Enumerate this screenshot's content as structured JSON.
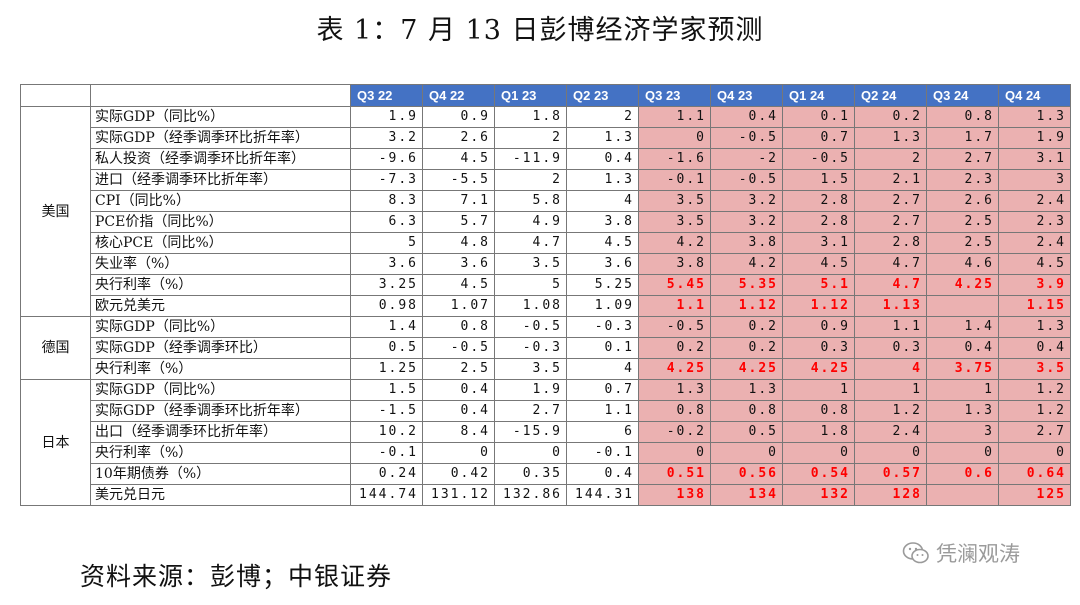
{
  "title": "表 1：7 月 13 日彭博经济学家预测",
  "table": {
    "quarters": [
      "Q3 22",
      "Q4 22",
      "Q1 23",
      "Q2 23",
      "Q3 23",
      "Q4 23",
      "Q1 24",
      "Q2 24",
      "Q3 24",
      "Q4 24"
    ],
    "groups": [
      {
        "country": "美国",
        "rows": [
          {
            "label": "实际GDP（同比%）",
            "values": [
              "1.9",
              "0.9",
              "1.8",
              "2",
              "1.1",
              "0.4",
              "0.1",
              "0.2",
              "0.8",
              "1.3"
            ]
          },
          {
            "label": "实际GDP（经季调季环比折年率）",
            "values": [
              "3.2",
              "2.6",
              "2",
              "1.3",
              "0",
              "-0.5",
              "0.7",
              "1.3",
              "1.7",
              "1.9"
            ]
          },
          {
            "label": "私人投资（经季调季环比折年率）",
            "values": [
              "-9.6",
              "4.5",
              "-11.9",
              "0.4",
              "-1.6",
              "-2",
              "-0.5",
              "2",
              "2.7",
              "3.1"
            ]
          },
          {
            "label": "进口（经季调季环比折年率）",
            "values": [
              "-7.3",
              "-5.5",
              "2",
              "1.3",
              "-0.1",
              "-0.5",
              "1.5",
              "2.1",
              "2.3",
              "3"
            ]
          },
          {
            "label": "CPI（同比%）",
            "values": [
              "8.3",
              "7.1",
              "5.8",
              "4",
              "3.5",
              "3.2",
              "2.8",
              "2.7",
              "2.6",
              "2.4"
            ]
          },
          {
            "label": "PCE价指（同比%）",
            "values": [
              "6.3",
              "5.7",
              "4.9",
              "3.8",
              "3.5",
              "3.2",
              "2.8",
              "2.7",
              "2.5",
              "2.3"
            ]
          },
          {
            "label": "核心PCE（同比%）",
            "values": [
              "5",
              "4.8",
              "4.7",
              "4.5",
              "4.2",
              "3.8",
              "3.1",
              "2.8",
              "2.5",
              "2.4"
            ]
          },
          {
            "label": "失业率（%）",
            "values": [
              "3.6",
              "3.6",
              "3.5",
              "3.6",
              "3.8",
              "4.2",
              "4.5",
              "4.7",
              "4.6",
              "4.5"
            ]
          },
          {
            "label": "央行利率（%）",
            "values": [
              "3.25",
              "4.5",
              "5",
              "5.25",
              "5.45",
              "5.35",
              "5.1",
              "4.7",
              "4.25",
              "3.9"
            ],
            "red": true
          },
          {
            "label": "欧元兑美元",
            "values": [
              "0.98",
              "1.07",
              "1.08",
              "1.09",
              "1.1",
              "1.12",
              "1.12",
              "1.13",
              "",
              "1.15"
            ],
            "red": true
          }
        ]
      },
      {
        "country": "德国",
        "rows": [
          {
            "label": "实际GDP（同比%）",
            "values": [
              "1.4",
              "0.8",
              "-0.5",
              "-0.3",
              "-0.5",
              "0.2",
              "0.9",
              "1.1",
              "1.4",
              "1.3"
            ]
          },
          {
            "label": "实际GDP（经季调季环比）",
            "values": [
              "0.5",
              "-0.5",
              "-0.3",
              "0.1",
              "0.2",
              "0.2",
              "0.3",
              "0.3",
              "0.4",
              "0.4"
            ]
          },
          {
            "label": "央行利率（%）",
            "values": [
              "1.25",
              "2.5",
              "3.5",
              "4",
              "4.25",
              "4.25",
              "4.25",
              "4",
              "3.75",
              "3.5"
            ],
            "red": true
          }
        ]
      },
      {
        "country": "日本",
        "rows": [
          {
            "label": "实际GDP（同比%）",
            "values": [
              "1.5",
              "0.4",
              "1.9",
              "0.7",
              "1.3",
              "1.3",
              "1",
              "1",
              "1",
              "1.2"
            ]
          },
          {
            "label": "实际GDP（经季调季环比折年率）",
            "values": [
              "-1.5",
              "0.4",
              "2.7",
              "1.1",
              "0.8",
              "0.8",
              "0.8",
              "1.2",
              "1.3",
              "1.2"
            ]
          },
          {
            "label": "出口（经季调季环比折年率）",
            "values": [
              "10.2",
              "8.4",
              "-15.9",
              "6",
              "-0.2",
              "0.5",
              "1.8",
              "2.4",
              "3",
              "2.7"
            ]
          },
          {
            "label": "央行利率（%）",
            "values": [
              "-0.1",
              "0",
              "0",
              "-0.1",
              "0",
              "0",
              "0",
              "0",
              "0",
              "0"
            ]
          },
          {
            "label": "10年期债券（%）",
            "values": [
              "0.24",
              "0.42",
              "0.35",
              "0.4",
              "0.51",
              "0.56",
              "0.54",
              "0.57",
              "0.6",
              "0.64"
            ],
            "red": true
          },
          {
            "label": "美元兑日元",
            "values": [
              "144.74",
              "131.12",
              "132.86",
              "144.31",
              "138",
              "134",
              "132",
              "128",
              "",
              "125"
            ],
            "red": true
          }
        ]
      }
    ]
  },
  "source": "资料来源：彭博；中银证券",
  "watermark": {
    "icon": "wechat-icon",
    "text": "凭澜观涛"
  }
}
